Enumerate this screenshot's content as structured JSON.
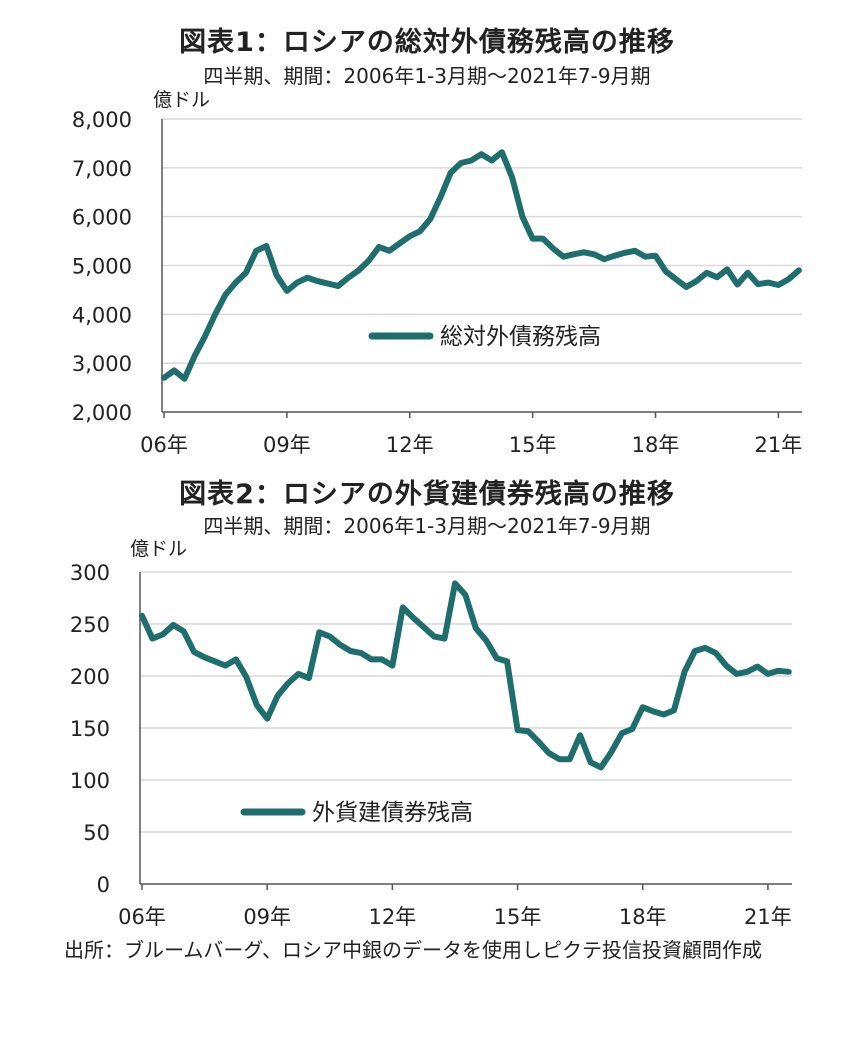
{
  "source_note": "出所：ブルームバーグ、ロシア中銀のデータを使用しピクテ投信投資顧問作成",
  "chart_data": [
    {
      "type": "line",
      "title": "図表1：ロシアの総対外債務残高の推移",
      "subtitle": "四半期、期間：2006年1-3月期～2021年7-9月期",
      "ylabel": "億ドル",
      "xlabel": "",
      "ylim": [
        2000,
        8000
      ],
      "yticks": [
        "2,000",
        "3,000",
        "4,000",
        "5,000",
        "6,000",
        "7,000",
        "8,000"
      ],
      "ytick_values": [
        2000,
        3000,
        4000,
        5000,
        6000,
        7000,
        8000
      ],
      "xticks": [
        "06年",
        "09年",
        "12年",
        "15年",
        "18年",
        "21年"
      ],
      "grid": "horizontal",
      "legend_position": "center",
      "color": "#1f6e6e",
      "x_start": "2006Q1",
      "series": [
        {
          "name": "総対外債務残高",
          "values": [
            2700,
            2850,
            2680,
            3150,
            3550,
            4000,
            4400,
            4650,
            4850,
            5300,
            5400,
            4800,
            4480,
            4650,
            4750,
            4680,
            4630,
            4580,
            4750,
            4900,
            5100,
            5380,
            5300,
            5450,
            5600,
            5700,
            5950,
            6400,
            6900,
            7100,
            7150,
            7280,
            7150,
            7320,
            6800,
            6000,
            5550,
            5550,
            5350,
            5180,
            5230,
            5270,
            5230,
            5130,
            5200,
            5260,
            5300,
            5180,
            5200,
            4880,
            4720,
            4560,
            4680,
            4850,
            4760,
            4920,
            4610,
            4850,
            4620,
            4650,
            4600,
            4720,
            4900
          ]
        }
      ]
    },
    {
      "type": "line",
      "title": "図表2：ロシアの外貨建債券残高の推移",
      "subtitle": "四半期、期間：2006年1-3月期～2021年7-9月期",
      "ylabel": "億ドル",
      "xlabel": "",
      "ylim": [
        0,
        300
      ],
      "yticks": [
        "0",
        "50",
        "100",
        "150",
        "200",
        "250",
        "300"
      ],
      "ytick_values": [
        0,
        50,
        100,
        150,
        200,
        250,
        300
      ],
      "xticks": [
        "06年",
        "09年",
        "12年",
        "15年",
        "18年",
        "21年"
      ],
      "grid": "horizontal",
      "legend_position": "bottom-left",
      "color": "#1f6e6e",
      "x_start": "2006Q1",
      "series": [
        {
          "name": "外貨建債券残高",
          "values": [
            258,
            236,
            240,
            249,
            243,
            223,
            218,
            214,
            210,
            216,
            199,
            172,
            159,
            181,
            193,
            202,
            198,
            242,
            238,
            230,
            224,
            222,
            216,
            216,
            210,
            266,
            256,
            247,
            238,
            236,
            289,
            278,
            246,
            234,
            217,
            214,
            148,
            147,
            137,
            126,
            120,
            120,
            143,
            117,
            112,
            127,
            145,
            149,
            170,
            166,
            163,
            167,
            204,
            224,
            227,
            222,
            210,
            202,
            204,
            209,
            202,
            205,
            204
          ]
        }
      ]
    }
  ]
}
